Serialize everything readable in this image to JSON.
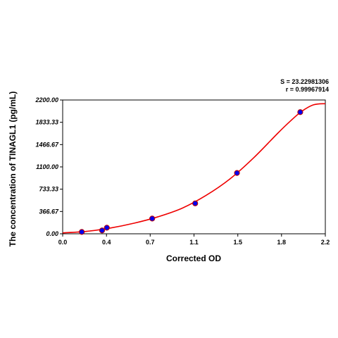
{
  "chart_data": {
    "type": "scatter",
    "xlabel": "Corrected OD",
    "ylabel": "The concentration of TINAGL1 (pg/mL)",
    "xlim": [
      0.0,
      2.2
    ],
    "ylim": [
      0.0,
      2200.0
    ],
    "x_ticks": [
      "0.0",
      "0.4",
      "0.7",
      "1.1",
      "1.5",
      "1.8",
      "2.2"
    ],
    "x_tick_values": [
      0.0,
      0.367,
      0.733,
      1.1,
      1.467,
      1.833,
      2.2
    ],
    "y_ticks": [
      "0.00",
      "366.67",
      "733.33",
      "1100.00",
      "1466.67",
      "1833.33",
      "2200.00"
    ],
    "y_tick_values": [
      0.0,
      366.67,
      733.33,
      1100.0,
      1466.67,
      1833.33,
      2200.0
    ],
    "grid": false,
    "stats": {
      "s_label": "S = 23.22981306",
      "r_label": "r = 0.99967914"
    },
    "series": [
      {
        "type": "scatter",
        "color": "#0000ee",
        "x": [
          0.16,
          0.33,
          0.37,
          0.75,
          1.11,
          1.46,
          1.99
        ],
        "y": [
          30,
          55,
          100,
          250,
          500,
          1000,
          2000
        ]
      },
      {
        "type": "line",
        "color": "#ee0000",
        "x": [
          0.0,
          0.2,
          0.4,
          0.6,
          0.8,
          1.0,
          1.2,
          1.4,
          1.6,
          1.8,
          1.9,
          2.0,
          2.1,
          2.2
        ],
        "y": [
          15,
          40,
          95,
          175,
          280,
          420,
          630,
          900,
          1250,
          1650,
          1840,
          2010,
          2120,
          2140
        ]
      }
    ]
  }
}
